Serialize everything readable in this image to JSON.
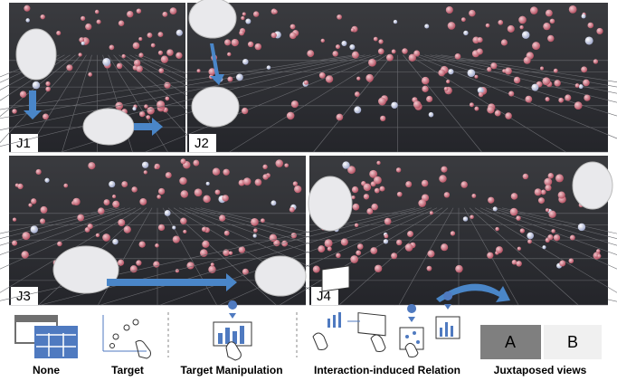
{
  "panels": [
    {
      "label": "J1"
    },
    {
      "label": "J2"
    },
    {
      "label": "J3"
    },
    {
      "label": "J4"
    }
  ],
  "legend": [
    {
      "label": "None"
    },
    {
      "label": "Target"
    },
    {
      "label": "Target Manipulation"
    },
    {
      "label": "Interaction-induced Relation"
    },
    {
      "label": "Juxtaposed views"
    }
  ],
  "juxtaposed": {
    "a": "A",
    "b": "B"
  }
}
